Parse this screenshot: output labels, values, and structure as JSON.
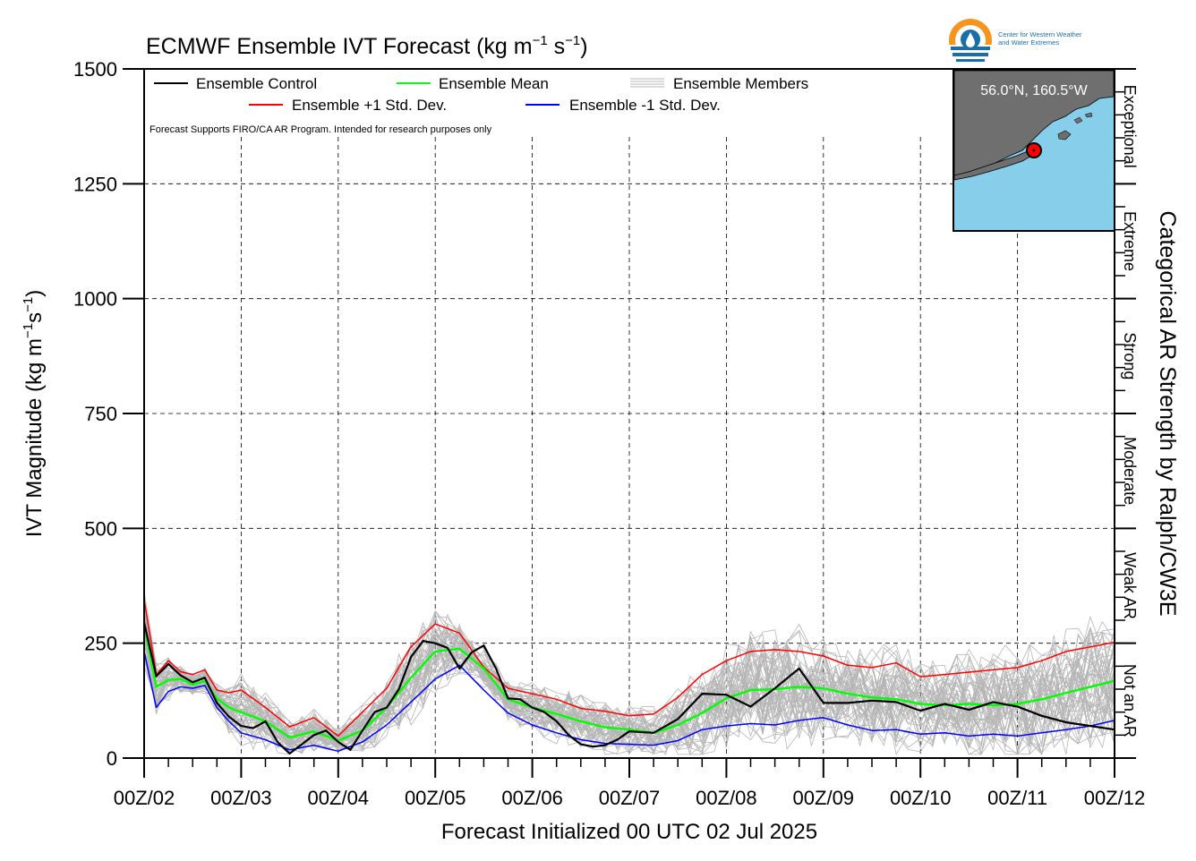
{
  "chart_data": {
    "type": "line",
    "title_main": "ECMWF Ensemble IVT Forecast (kg m",
    "title_exp1": "−1",
    "title_mid": " s",
    "title_exp2": "−1",
    "title_end": ")",
    "ylabel_main": "IVT Magnitude (kg m",
    "ylabel_exp1": "−1",
    "ylabel_mid": "s",
    "ylabel_exp2": "−1",
    "ylabel_end": ")",
    "xlabel": "Forecast Initialized 00 UTC 02 Jul 2025",
    "right_label": "Categorical AR Strength by Ralph/CW3E",
    "note": "Forecast Supports FIRO/CA AR Program. Intended for research purposes only",
    "ylim": [
      0,
      1500
    ],
    "xlim": [
      0,
      10
    ],
    "y_ticks": [
      "0",
      "250",
      "500",
      "750",
      "1000",
      "1250",
      "1500"
    ],
    "x_ticks": [
      "00Z/02",
      "00Z/03",
      "00Z/04",
      "00Z/05",
      "00Z/06",
      "00Z/07",
      "00Z/08",
      "00Z/09",
      "00Z/10",
      "00Z/11",
      "00Z/12"
    ],
    "categories": [
      {
        "label": "Not an AR",
        "range": [
          0,
          250
        ]
      },
      {
        "label": "Weak AR",
        "range": [
          250,
          500
        ]
      },
      {
        "label": "Moderate",
        "range": [
          500,
          750
        ]
      },
      {
        "label": "Strong",
        "range": [
          750,
          1000
        ]
      },
      {
        "label": "Extreme",
        "range": [
          1000,
          1250
        ]
      },
      {
        "label": "Exceptional",
        "range": [
          1250,
          1500
        ]
      }
    ],
    "legend": {
      "control": "Ensemble Control",
      "mean": "Ensemble Mean",
      "members": "Ensemble Members",
      "plus": "Ensemble +1 Std. Dev.",
      "minus": "Ensemble -1 Std. Dev."
    },
    "colors": {
      "control": "#000000",
      "mean": "#00ff00",
      "members": "#b5b5b5",
      "plus": "#ff0000",
      "minus": "#0000ff",
      "ocean": "#87ceeb",
      "land": "#6f6f6f",
      "marker": "#ff0000"
    },
    "location": "56.0°N, 160.5°W",
    "logo_text_1": "Center for Western Weather",
    "logo_text_2": "and Water Extremes",
    "series": [
      {
        "name": "Ensemble Control",
        "x": [
          0,
          0.125,
          0.25,
          0.375,
          0.5,
          0.625,
          0.75,
          0.875,
          1,
          1.125,
          1.25,
          1.375,
          1.5,
          1.625,
          1.75,
          1.875,
          2,
          2.125,
          2.25,
          2.375,
          2.5,
          2.625,
          2.75,
          2.875,
          3,
          3.125,
          3.25,
          3.375,
          3.5,
          3.625,
          3.75,
          3.875,
          4,
          4.125,
          4.25,
          4.375,
          4.5,
          4.625,
          4.75,
          4.875,
          5,
          5.25,
          5.5,
          5.75,
          6,
          6.25,
          6.5,
          6.75,
          7,
          7.25,
          7.5,
          7.75,
          8,
          8.25,
          8.5,
          8.75,
          9,
          9.25,
          9.5,
          9.75,
          10
        ],
        "y": [
          295,
          178,
          205,
          180,
          165,
          175,
          120,
          90,
          70,
          65,
          80,
          35,
          10,
          30,
          50,
          60,
          35,
          18,
          60,
          100,
          110,
          150,
          220,
          255,
          250,
          240,
          195,
          230,
          245,
          195,
          130,
          128,
          110,
          100,
          80,
          50,
          30,
          25,
          28,
          40,
          58,
          55,
          85,
          140,
          138,
          112,
          152,
          195,
          120,
          120,
          125,
          122,
          103,
          118,
          105,
          122,
          112,
          92,
          78,
          70,
          62
        ]
      },
      {
        "name": "Ensemble Mean",
        "x": [
          0,
          0.125,
          0.25,
          0.375,
          0.5,
          0.625,
          0.75,
          0.875,
          1,
          1.25,
          1.5,
          1.75,
          2,
          2.25,
          2.5,
          2.75,
          3,
          3.25,
          3.5,
          3.75,
          4,
          4.25,
          4.5,
          4.75,
          5,
          5.25,
          5.5,
          5.75,
          6,
          6.25,
          6.5,
          6.75,
          7,
          7.25,
          7.5,
          7.75,
          8,
          8.25,
          8.5,
          8.75,
          9,
          9.25,
          9.5,
          9.75,
          10
        ],
        "y": [
          290,
          155,
          170,
          172,
          160,
          168,
          130,
          110,
          100,
          80,
          45,
          58,
          38,
          60,
          110,
          175,
          232,
          238,
          195,
          128,
          110,
          96,
          80,
          67,
          62,
          55,
          72,
          98,
          130,
          148,
          150,
          155,
          152,
          140,
          132,
          128,
          118,
          115,
          118,
          115,
          118,
          128,
          142,
          155,
          168
        ]
      },
      {
        "name": "Ensemble +1 Std. Dev.",
        "x": [
          0,
          0.125,
          0.25,
          0.375,
          0.5,
          0.625,
          0.75,
          0.875,
          1,
          1.25,
          1.5,
          1.75,
          2,
          2.25,
          2.5,
          2.75,
          3,
          3.25,
          3.5,
          3.75,
          4,
          4.25,
          4.5,
          4.75,
          5,
          5.25,
          5.5,
          5.75,
          6,
          6.25,
          6.5,
          6.75,
          7,
          7.25,
          7.5,
          7.75,
          8,
          8.25,
          8.5,
          8.75,
          9,
          9.25,
          9.5,
          9.75,
          10
        ],
        "y": [
          345,
          182,
          212,
          188,
          182,
          192,
          148,
          142,
          148,
          110,
          68,
          88,
          48,
          100,
          152,
          242,
          292,
          272,
          198,
          152,
          140,
          128,
          108,
          102,
          92,
          96,
          132,
          182,
          212,
          232,
          236,
          232,
          222,
          202,
          197,
          207,
          177,
          182,
          187,
          192,
          197,
          212,
          232,
          242,
          252
        ]
      },
      {
        "name": "Ensemble -1 Std. Dev.",
        "x": [
          0,
          0.125,
          0.25,
          0.375,
          0.5,
          0.625,
          0.75,
          0.875,
          1,
          1.25,
          1.5,
          1.75,
          2,
          2.25,
          2.5,
          2.75,
          3,
          3.25,
          3.5,
          3.75,
          4,
          4.25,
          4.5,
          4.75,
          5,
          5.25,
          5.5,
          5.75,
          6,
          6.25,
          6.5,
          6.75,
          7,
          7.25,
          7.5,
          7.75,
          8,
          8.25,
          8.5,
          8.75,
          9,
          9.25,
          9.5,
          9.75,
          10
        ],
        "y": [
          232,
          110,
          145,
          155,
          152,
          158,
          110,
          80,
          55,
          40,
          18,
          28,
          15,
          35,
          72,
          122,
          172,
          202,
          148,
          98,
          72,
          55,
          40,
          32,
          30,
          28,
          38,
          62,
          70,
          75,
          72,
          82,
          88,
          72,
          60,
          62,
          52,
          55,
          48,
          52,
          48,
          55,
          62,
          70,
          82
        ]
      }
    ]
  }
}
